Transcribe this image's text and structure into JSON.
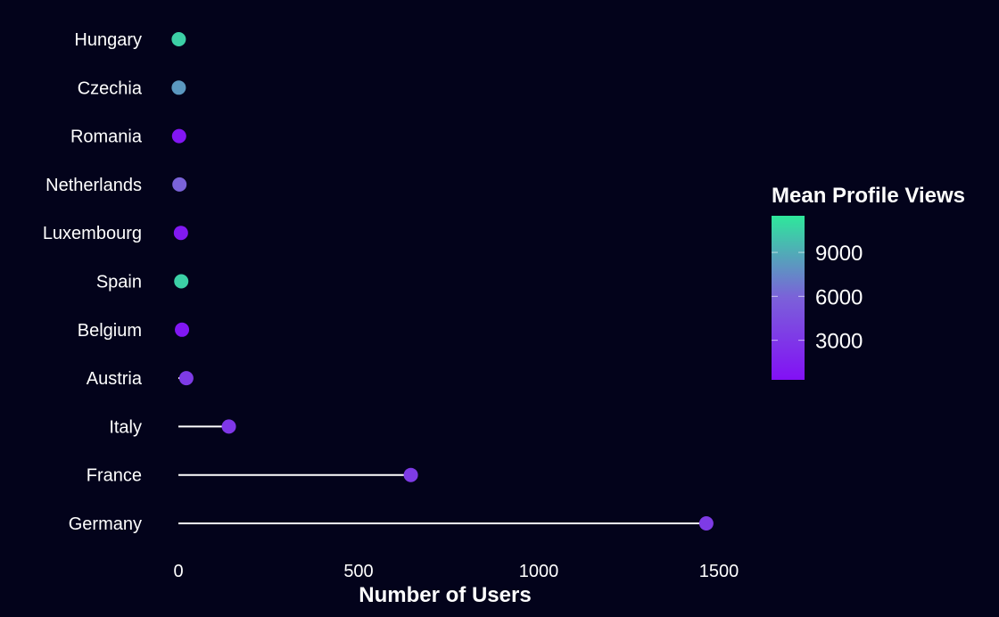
{
  "chart_data": {
    "type": "lollipop",
    "orientation": "horizontal",
    "categories": [
      "Germany",
      "France",
      "Italy",
      "Austria",
      "Belgium",
      "Spain",
      "Luxembourg",
      "Netherlands",
      "Romania",
      "Czechia",
      "Hungary"
    ],
    "values": [
      1465,
      645,
      140,
      22,
      10,
      8,
      7,
      3,
      2,
      1,
      1
    ],
    "color_values": [
      3300,
      3300,
      3000,
      3300,
      800,
      10500,
      900,
      6000,
      700,
      8200,
      10500
    ],
    "xlabel": "Number of Users",
    "ylabel": "",
    "xlim": [
      -15,
      1555
    ],
    "x_ticks": [
      0,
      500,
      1000,
      1500
    ],
    "x_tick_labels": [
      "0",
      "500",
      "1000",
      "1500"
    ],
    "grid": false,
    "legend": {
      "title": "Mean Profile Views",
      "type": "colorbar",
      "position": "right",
      "range": [
        300,
        11500
      ],
      "ticks": [
        3000,
        6000,
        9000
      ],
      "tick_labels": [
        "3000",
        "6000",
        "9000"
      ],
      "color_low": "#8210f5",
      "color_mid": "#7b61d9",
      "color_high": "#2ee89b"
    },
    "colors": {
      "background": "#03031b",
      "stem": "#ffffff",
      "text": "#ffffff"
    }
  }
}
